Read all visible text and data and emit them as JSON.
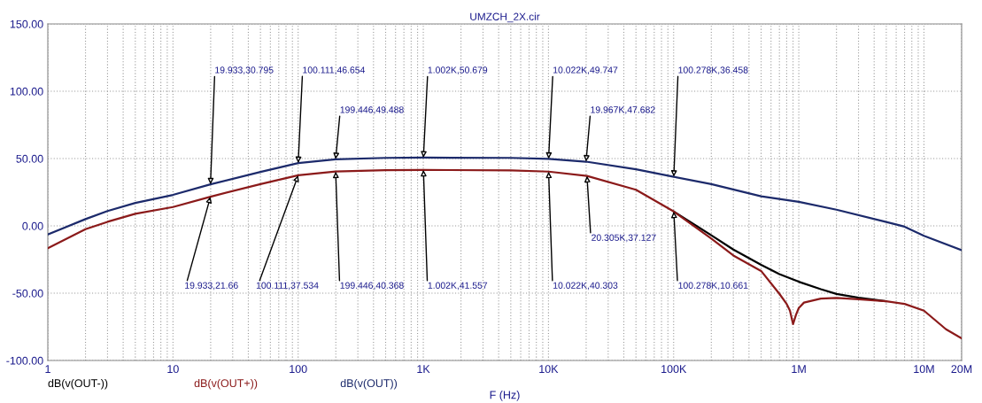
{
  "chart_data": {
    "type": "line",
    "title": "UMZCH_2X.cir",
    "xlabel": "F (Hz)",
    "log": "x",
    "xlim": [
      1,
      20000000
    ],
    "xticks": [
      {
        "value": 1,
        "label": "1"
      },
      {
        "value": 10,
        "label": "10"
      },
      {
        "value": 100,
        "label": "100"
      },
      {
        "value": 1000,
        "label": "1K"
      },
      {
        "value": 10000,
        "label": "10K"
      },
      {
        "value": 100000,
        "label": "100K"
      },
      {
        "value": 1000000,
        "label": "1M"
      },
      {
        "value": 10000000,
        "label": "10M"
      },
      {
        "value": 20000000,
        "label": "20M"
      }
    ],
    "ylim": [
      -100,
      150
    ],
    "yticks": [
      {
        "value": -100,
        "label": "-100.00"
      },
      {
        "value": -50,
        "label": "-50.00"
      },
      {
        "value": 0,
        "label": "0.00"
      },
      {
        "value": 50,
        "label": "50.00"
      },
      {
        "value": 100,
        "label": "100.00"
      },
      {
        "value": 150,
        "label": "150.00"
      }
    ],
    "grid": true,
    "legend": "bottom left",
    "line_style": "solid",
    "marker": "none",
    "series": [
      {
        "name": "dB(v(OUT-))",
        "color": "#000000",
        "x": [
          100000,
          200000,
          300000,
          500000,
          700000,
          1000000,
          1500000,
          2000000,
          3000000,
          5000000
        ],
        "values": [
          10.7,
          -7,
          -17.6,
          -29,
          -35.8,
          -41.5,
          -47,
          -50.6,
          -53.4,
          -56
        ]
      },
      {
        "name": "dB(v(OUT+))",
        "color": "#8b1a1a",
        "x": [
          1,
          2,
          3,
          5,
          10,
          19.933,
          50,
          100.111,
          199.446,
          500,
          1002,
          5000,
          10022,
          20305,
          50000,
          100278,
          200000,
          300000,
          500000,
          700000,
          800000,
          850000,
          900000,
          950000,
          1000000,
          1100000,
          1500000,
          2000000,
          3000000,
          5000000,
          7000000,
          10000000,
          15000000,
          20000000
        ],
        "values": [
          -16.6,
          -2.5,
          3,
          9,
          14,
          21.66,
          31,
          37.534,
          40.368,
          41.3,
          41.557,
          41.2,
          40.303,
          37.127,
          26.8,
          10.661,
          -9.5,
          -22,
          -33.5,
          -50.5,
          -58,
          -63,
          -73,
          -66,
          -61,
          -57,
          -54,
          -53.6,
          -54.5,
          -56,
          -58,
          -63,
          -76.8,
          -83.5
        ]
      },
      {
        "name": "dB(v(OUT))",
        "color": "#1c2a6b",
        "x": [
          1,
          2,
          3,
          5,
          10,
          19.933,
          50,
          100.111,
          199.446,
          500,
          1002,
          5000,
          10022,
          19967,
          50000,
          100278,
          200000,
          500000,
          1000000,
          2000000,
          5000000,
          7000000,
          10000000,
          20000000
        ],
        "values": [
          -6.4,
          5,
          11,
          17,
          23,
          30.795,
          40,
          46.654,
          49.488,
          50.5,
          50.679,
          50.5,
          49.747,
          47.682,
          42,
          36.458,
          31,
          22,
          17.8,
          12,
          2.9,
          -0.6,
          -7.4,
          -18
        ]
      }
    ],
    "annotations": [
      {
        "text": "19.933,30.795",
        "x": 19.933,
        "y": 30.795
      },
      {
        "text": "100.111,46.654",
        "x": 100.111,
        "y": 46.654
      },
      {
        "text": "199.446,49.488",
        "x": 199.446,
        "y": 49.488
      },
      {
        "text": "1.002K,50.679",
        "x": 1002,
        "y": 50.679
      },
      {
        "text": "10.022K,49.747",
        "x": 10022,
        "y": 49.747
      },
      {
        "text": "19.967K,47.682",
        "x": 19967,
        "y": 47.682
      },
      {
        "text": "100.278K,36.458",
        "x": 100278,
        "y": 36.458
      },
      {
        "text": "19.933,21.66",
        "x": 19.933,
        "y": 21.66
      },
      {
        "text": "100.111,37.534",
        "x": 100.111,
        "y": 37.534
      },
      {
        "text": "199.446,40.368",
        "x": 199.446,
        "y": 40.368
      },
      {
        "text": "1.002K,41.557",
        "x": 1002,
        "y": 41.557
      },
      {
        "text": "10.022K,40.303",
        "x": 10022,
        "y": 40.303
      },
      {
        "text": "20.305K,37.127",
        "x": 20305,
        "y": 37.127
      },
      {
        "text": "100.278K,10.661",
        "x": 100278,
        "y": 10.661
      }
    ]
  }
}
